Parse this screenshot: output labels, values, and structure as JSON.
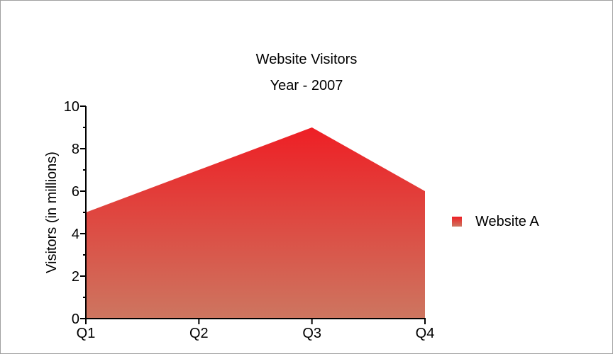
{
  "chart_data": {
    "type": "area",
    "title": "Website Visitors",
    "subtitle": "Year - 2007",
    "xlabel": "",
    "ylabel": "Visitors (in millions)",
    "categories": [
      "Q1",
      "Q2",
      "Q3",
      "Q4"
    ],
    "series": [
      {
        "name": "Website A",
        "values": [
          5,
          7,
          9,
          6
        ],
        "color_top": "#ee1f25",
        "color_bottom": "#cd7660"
      }
    ],
    "ylim": [
      0,
      10
    ],
    "yticks": [
      0,
      2,
      4,
      6,
      8,
      10
    ],
    "yminor_step": 1,
    "grid": false,
    "legend": "right"
  }
}
